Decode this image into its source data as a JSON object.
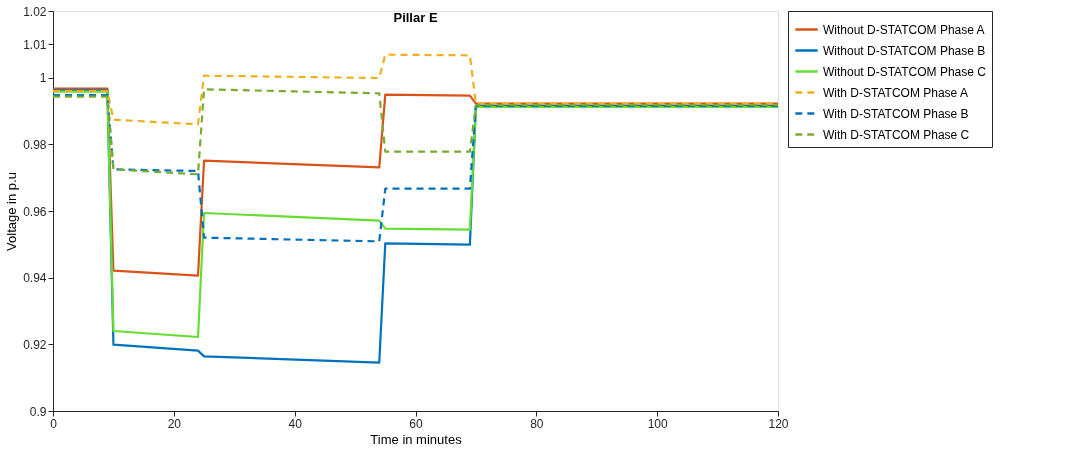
{
  "chart_data": {
    "type": "line",
    "title": "Pillar E",
    "xlabel": "Time in minutes",
    "ylabel": "Voltage in p.u",
    "xlim": [
      0,
      120
    ],
    "xticks": [
      0,
      20,
      40,
      60,
      80,
      100,
      120
    ],
    "ylim": [
      0.9,
      1.02
    ],
    "yticks": [
      0.9,
      0.92,
      0.94,
      0.96,
      0.98,
      1,
      1.01,
      1.02
    ],
    "grid": false,
    "legend": "top right",
    "marker": "none",
    "series": [
      {
        "name": "Without D-STATCOM Phase A",
        "color": "#d95319",
        "line_style": "solid",
        "x": [
          0,
          9,
          10,
          24,
          25,
          54,
          55,
          69,
          70,
          120
        ],
        "values": [
          0.9967,
          0.9967,
          0.9421,
          0.9406,
          0.9751,
          0.9731,
          0.9949,
          0.9946,
          0.9922,
          0.9922
        ]
      },
      {
        "name": "Without D-STATCOM Phase B",
        "color": "#0072bd",
        "line_style": "solid",
        "x": [
          0,
          9,
          10,
          24,
          25,
          54,
          55,
          69,
          70,
          120
        ],
        "values": [
          0.9962,
          0.9962,
          0.9199,
          0.9181,
          0.9164,
          0.9145,
          0.9503,
          0.9499,
          0.9915,
          0.9915
        ]
      },
      {
        "name": "Without D-STATCOM Phase C",
        "color": "#66dd33",
        "line_style": "solid",
        "x": [
          0,
          9,
          10,
          24,
          25,
          54,
          55,
          69,
          70,
          120
        ],
        "values": [
          0.9958,
          0.9958,
          0.924,
          0.9222,
          0.9594,
          0.9571,
          0.9547,
          0.9544,
          0.9912,
          0.9912
        ]
      },
      {
        "name": "With D-STATCOM Phase A",
        "color": "#edb120",
        "line_style": "dashed",
        "x": [
          0,
          9,
          10,
          24,
          25,
          54,
          55,
          69,
          70,
          120
        ],
        "values": [
          0.996,
          0.996,
          0.9874,
          0.986,
          1.0006,
          0.9999,
          1.0069,
          1.0067,
          0.9922,
          0.9922
        ]
      },
      {
        "name": "With D-STATCOM Phase B",
        "color": "#0072bd",
        "line_style": "dashed",
        "x": [
          0,
          9,
          10,
          24,
          25,
          54,
          55,
          69,
          70,
          120
        ],
        "values": [
          0.9948,
          0.9948,
          0.9725,
          0.972,
          0.952,
          0.9509,
          0.9667,
          0.9667,
          0.9915,
          0.9915
        ]
      },
      {
        "name": "With D-STATCOM Phase C",
        "color": "#77ac30",
        "line_style": "dashed",
        "x": [
          0,
          9,
          10,
          24,
          25,
          54,
          55,
          69,
          70,
          120
        ],
        "values": [
          0.9943,
          0.9943,
          0.9725,
          0.971,
          0.9965,
          0.9953,
          0.9778,
          0.9778,
          0.9918,
          0.9918
        ]
      }
    ]
  }
}
